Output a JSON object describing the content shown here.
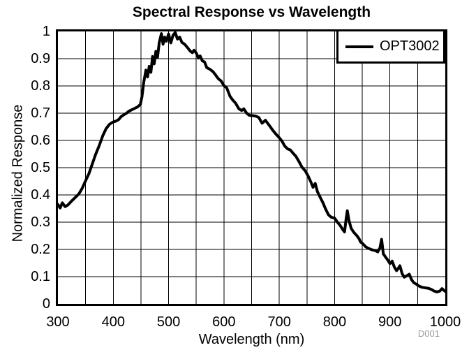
{
  "title": "Spectral Response vs Wavelength",
  "watermark": "D001",
  "legend": {
    "series_label": "OPT3002"
  },
  "x_axis": {
    "label": "Wavelength (nm)",
    "ticks": [
      "300",
      "400",
      "500",
      "600",
      "700",
      "800",
      "900",
      "1000"
    ]
  },
  "y_axis": {
    "label": "Normalized Response",
    "ticks": [
      "0",
      "0.1",
      "0.2",
      "0.3",
      "0.4",
      "0.5",
      "0.6",
      "0.7",
      "0.8",
      "0.9",
      "1"
    ]
  },
  "colors": {
    "curve": "#000000",
    "grid": "#000000",
    "border": "#000000",
    "watermark": "#9c9c9c"
  },
  "chart_data": {
    "type": "line",
    "title": "Spectral Response vs Wavelength",
    "xlabel": "Wavelength (nm)",
    "ylabel": "Normalized Response",
    "xlim": [
      300,
      1000
    ],
    "ylim": [
      0,
      1
    ],
    "x_grid_step": 50,
    "y_grid_step": 0.1,
    "grid": true,
    "legend_position": "top-right",
    "series": [
      {
        "name": "OPT3002",
        "color": "#000000",
        "points": [
          [
            300,
            0.365
          ],
          [
            304,
            0.352
          ],
          [
            308,
            0.371
          ],
          [
            313,
            0.357
          ],
          [
            318,
            0.363
          ],
          [
            324,
            0.376
          ],
          [
            331,
            0.39
          ],
          [
            338,
            0.404
          ],
          [
            344,
            0.425
          ],
          [
            350,
            0.452
          ],
          [
            356,
            0.478
          ],
          [
            362,
            0.513
          ],
          [
            368,
            0.548
          ],
          [
            375,
            0.583
          ],
          [
            381,
            0.617
          ],
          [
            387,
            0.643
          ],
          [
            393,
            0.659
          ],
          [
            399,
            0.667
          ],
          [
            405,
            0.671
          ],
          [
            410,
            0.677
          ],
          [
            414,
            0.687
          ],
          [
            419,
            0.694
          ],
          [
            424,
            0.7
          ],
          [
            428,
            0.707
          ],
          [
            433,
            0.712
          ],
          [
            438,
            0.717
          ],
          [
            444,
            0.723
          ],
          [
            449,
            0.732
          ],
          [
            452,
            0.762
          ],
          [
            455,
            0.812
          ],
          [
            459,
            0.858
          ],
          [
            462,
            0.833
          ],
          [
            465,
            0.872
          ],
          [
            468,
            0.85
          ],
          [
            471,
            0.908
          ],
          [
            474,
            0.881
          ],
          [
            477,
            0.927
          ],
          [
            480,
            0.905
          ],
          [
            483,
            0.958
          ],
          [
            487,
            0.992
          ],
          [
            490,
            0.953
          ],
          [
            493,
            0.979
          ],
          [
            496,
            0.964
          ],
          [
            500,
            0.991
          ],
          [
            504,
            0.958
          ],
          [
            508,
            0.986
          ],
          [
            512,
            0.996
          ],
          [
            516,
            0.972
          ],
          [
            520,
            0.979
          ],
          [
            524,
            0.96
          ],
          [
            529,
            0.953
          ],
          [
            534,
            0.941
          ],
          [
            539,
            0.928
          ],
          [
            543,
            0.922
          ],
          [
            546,
            0.931
          ],
          [
            550,
            0.921
          ],
          [
            554,
            0.902
          ],
          [
            557,
            0.91
          ],
          [
            561,
            0.892
          ],
          [
            565,
            0.888
          ],
          [
            569,
            0.867
          ],
          [
            574,
            0.862
          ],
          [
            580,
            0.853
          ],
          [
            585,
            0.84
          ],
          [
            590,
            0.826
          ],
          [
            595,
            0.818
          ],
          [
            600,
            0.801
          ],
          [
            605,
            0.793
          ],
          [
            611,
            0.762
          ],
          [
            616,
            0.748
          ],
          [
            621,
            0.737
          ],
          [
            627,
            0.716
          ],
          [
            632,
            0.71
          ],
          [
            636,
            0.716
          ],
          [
            641,
            0.7
          ],
          [
            646,
            0.692
          ],
          [
            652,
            0.691
          ],
          [
            658,
            0.689
          ],
          [
            663,
            0.684
          ],
          [
            669,
            0.663
          ],
          [
            675,
            0.674
          ],
          [
            682,
            0.655
          ],
          [
            688,
            0.638
          ],
          [
            694,
            0.623
          ],
          [
            700,
            0.61
          ],
          [
            705,
            0.597
          ],
          [
            710,
            0.579
          ],
          [
            715,
            0.569
          ],
          [
            720,
            0.565
          ],
          [
            725,
            0.553
          ],
          [
            730,
            0.542
          ],
          [
            736,
            0.521
          ],
          [
            741,
            0.502
          ],
          [
            747,
            0.488
          ],
          [
            752,
            0.47
          ],
          [
            757,
            0.448
          ],
          [
            761,
            0.428
          ],
          [
            765,
            0.442
          ],
          [
            769,
            0.412
          ],
          [
            774,
            0.391
          ],
          [
            779,
            0.371
          ],
          [
            784,
            0.347
          ],
          [
            789,
            0.327
          ],
          [
            794,
            0.318
          ],
          [
            800,
            0.315
          ],
          [
            805,
            0.3
          ],
          [
            810,
            0.288
          ],
          [
            815,
            0.272
          ],
          [
            818,
            0.264
          ],
          [
            821,
            0.315
          ],
          [
            823,
            0.342
          ],
          [
            826,
            0.306
          ],
          [
            830,
            0.277
          ],
          [
            835,
            0.262
          ],
          [
            840,
            0.251
          ],
          [
            844,
            0.24
          ],
          [
            847,
            0.227
          ],
          [
            851,
            0.221
          ],
          [
            856,
            0.21
          ],
          [
            861,
            0.204
          ],
          [
            867,
            0.199
          ],
          [
            873,
            0.196
          ],
          [
            878,
            0.191
          ],
          [
            882,
            0.206
          ],
          [
            885,
            0.237
          ],
          [
            888,
            0.184
          ],
          [
            892,
            0.172
          ],
          [
            896,
            0.161
          ],
          [
            900,
            0.148
          ],
          [
            904,
            0.157
          ],
          [
            908,
            0.135
          ],
          [
            912,
            0.122
          ],
          [
            915,
            0.13
          ],
          [
            918,
            0.14
          ],
          [
            922,
            0.111
          ],
          [
            926,
            0.098
          ],
          [
            931,
            0.104
          ],
          [
            935,
            0.109
          ],
          [
            939,
            0.089
          ],
          [
            943,
            0.078
          ],
          [
            948,
            0.072
          ],
          [
            953,
            0.065
          ],
          [
            958,
            0.061
          ],
          [
            964,
            0.059
          ],
          [
            970,
            0.057
          ],
          [
            975,
            0.053
          ],
          [
            980,
            0.047
          ],
          [
            985,
            0.044
          ],
          [
            990,
            0.047
          ],
          [
            994,
            0.056
          ],
          [
            1000,
            0.046
          ]
        ]
      }
    ]
  }
}
